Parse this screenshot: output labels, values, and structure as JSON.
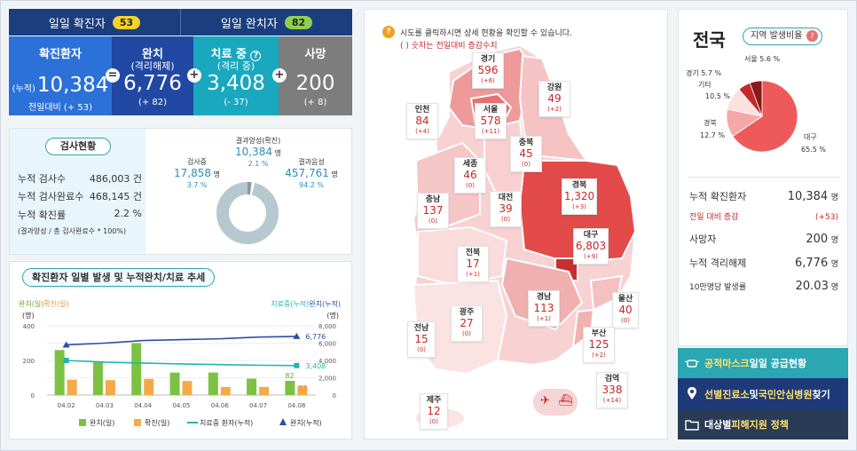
{
  "daily": {
    "confirmed_label": "일일 확진자",
    "confirmed": "53",
    "released_label": "일일 완치자",
    "released": "82"
  },
  "stats": [
    {
      "title": "확진환자",
      "prefix": "(누적)",
      "value": "10,384",
      "sub": "전일대비 (+ 53)",
      "color": "#2c71d8"
    },
    {
      "title": "완치",
      "title2": "(격리해제)",
      "value": "6,776",
      "sub": "(+ 82)",
      "color": "#2148a3"
    },
    {
      "title": "치료 중",
      "title2": "(격리 중)",
      "value": "3,408",
      "sub": "(- 37)",
      "color": "#1aa8bf"
    },
    {
      "title": "사망",
      "value": "200",
      "sub": "(+ 8)",
      "color": "#7d7d7d"
    }
  ],
  "ops": [
    "=",
    "+",
    "+"
  ],
  "help_icon": "?",
  "tests": {
    "title": "검사현황",
    "rows": [
      {
        "label": "누적 검사수",
        "value": "486,003 건"
      },
      {
        "label": "누적 검사완료수",
        "value": "468,145 건"
      },
      {
        "label": "누적 확진률",
        "value": "2.2 %"
      }
    ],
    "note": "(결과양성 / 총 검사완료수 * 100%)",
    "positive_label": "결과양성(확진)",
    "positive": "10,384",
    "positive_unit": "명",
    "positive_pct": "2.1 %",
    "testing_label": "검사중",
    "testing": "17,858",
    "testing_unit": "명",
    "testing_pct": "3.7 %",
    "negative_label": "결과음성",
    "negative": "457,761",
    "negative_unit": "명",
    "negative_pct": "94.2 %"
  },
  "trend": {
    "title": "확진환자 일별 발생 및 누적완치/치료 추세",
    "left_axis_label": "완치(일)",
    "left_axis_label2": "확진(일)",
    "left_unit": "(명)",
    "right_axis_label": "치료중(누적)",
    "right_axis_label2": "완치(누적)",
    "right_unit": "(명)"
  },
  "chart_data": {
    "type": "bar",
    "categories": [
      "04.02",
      "04.03",
      "04.04",
      "04.05",
      "04.06",
      "04.07",
      "04.08"
    ],
    "series": [
      {
        "name": "완치(일)",
        "axis": "left",
        "values": [
          260,
          190,
          300,
          130,
          130,
          95,
          82
        ]
      },
      {
        "name": "확진(일)",
        "axis": "left",
        "values": [
          89,
          86,
          94,
          81,
          47,
          47,
          53
        ]
      },
      {
        "name": "치료중 환자(누적)",
        "axis": "right",
        "type": "line",
        "values": [
          4000,
          3800,
          3700,
          3600,
          3520,
          3450,
          3408
        ]
      },
      {
        "name": "완치(누적)",
        "axis": "right",
        "type": "line",
        "values": [
          5800,
          6000,
          6300,
          6400,
          6500,
          6700,
          6776
        ]
      }
    ],
    "ylim_left": [
      0,
      400
    ],
    "yticks_left": [
      "400",
      "200",
      "0"
    ],
    "ylim_right": [
      0,
      8000
    ],
    "yticks_right": [
      "8,000",
      "6,000",
      "4,000",
      "2,000",
      "0"
    ],
    "data_labels": {
      "released_daily_last": "82",
      "confirmed_daily_last": "53",
      "in_treatment_last": "3,408",
      "released_cum_last": "6,776"
    },
    "colors": {
      "released_daily": "#7cc242",
      "confirmed_daily": "#f5a94a",
      "in_treatment": "#22b5b0",
      "released_cum": "#2c4ea5"
    },
    "legend": [
      "완치(일)",
      "확진(일)",
      "치료중 환자(누적)",
      "완치(누적)"
    ]
  },
  "map": {
    "guide": "시도를 클릭하시면 상세 현황을 확인할 수 있습니다.",
    "guide2": "( ) 숫자는 전일대비 증감수치",
    "regions": [
      {
        "name": "경기",
        "count": "596",
        "delta": "(+6)"
      },
      {
        "name": "강원",
        "count": "49",
        "delta": "(+2)"
      },
      {
        "name": "인천",
        "count": "84",
        "delta": "(+4)"
      },
      {
        "name": "서울",
        "count": "578",
        "delta": "(+11)"
      },
      {
        "name": "충북",
        "count": "45",
        "delta": "(0)"
      },
      {
        "name": "세종",
        "count": "46",
        "delta": "(0)"
      },
      {
        "name": "충남",
        "count": "137",
        "delta": "(0)"
      },
      {
        "name": "대전",
        "count": "39",
        "delta": "(0)"
      },
      {
        "name": "경북",
        "count": "1,320",
        "delta": "(+3)"
      },
      {
        "name": "대구",
        "count": "6,803",
        "delta": "(+9)"
      },
      {
        "name": "전북",
        "count": "17",
        "delta": "(+1)"
      },
      {
        "name": "울산",
        "count": "40",
        "delta": "(0)"
      },
      {
        "name": "경남",
        "count": "113",
        "delta": "(+1)"
      },
      {
        "name": "광주",
        "count": "27",
        "delta": "(0)"
      },
      {
        "name": "전남",
        "count": "15",
        "delta": "(0)"
      },
      {
        "name": "부산",
        "count": "125",
        "delta": "(+2)"
      },
      {
        "name": "검역",
        "count": "338",
        "delta": "(+14)"
      },
      {
        "name": "제주",
        "count": "12",
        "delta": "(0)"
      }
    ]
  },
  "national": {
    "title": "전국",
    "ratio_btn": "지역 발생비율",
    "pie": [
      {
        "label": "대구",
        "pct": "65.5 %",
        "value": 65.5,
        "color": "#ee5a5a"
      },
      {
        "label": "경북",
        "pct": "12.7 %",
        "value": 12.7,
        "color": "#f6a8a8"
      },
      {
        "label": "기타",
        "pct": "10.5 %",
        "value": 10.5,
        "color": "#fde0e0"
      },
      {
        "label": "경기",
        "pct": "5.7 %",
        "value": 5.7,
        "color": "#c62828"
      },
      {
        "label": "서울",
        "pct": "5.6 %",
        "value": 5.6,
        "color": "#8b1a1a"
      }
    ],
    "rows": [
      {
        "label": "누적 확진환자",
        "value": "10,384",
        "unit": "명"
      },
      {
        "label": "전일 대비 증감",
        "value": "(+53)",
        "unit": ""
      },
      {
        "label": "사망자",
        "value": "200",
        "unit": "명"
      },
      {
        "label": "누적 격리해제",
        "value": "6,776",
        "unit": "명"
      },
      {
        "label": "10만명당 발생률",
        "value": "20.03",
        "unit": "명"
      }
    ]
  },
  "links": [
    {
      "pre": "",
      "hl": "공적마스크",
      "post": " 일일 공급현황",
      "color": "#2aa7b3",
      "icon": "mask-icon"
    },
    {
      "pre": "",
      "hl": "선별진료소",
      "post": " 및 ",
      "hl2": "국민안심병원",
      "post2": " 찾기",
      "color": "#1e3a78",
      "icon": "map-pin-icon"
    },
    {
      "pre": "대상별 ",
      "hl": "피해지원 정책",
      "post": "",
      "color": "#2a3b56",
      "icon": "folder-icon"
    }
  ]
}
